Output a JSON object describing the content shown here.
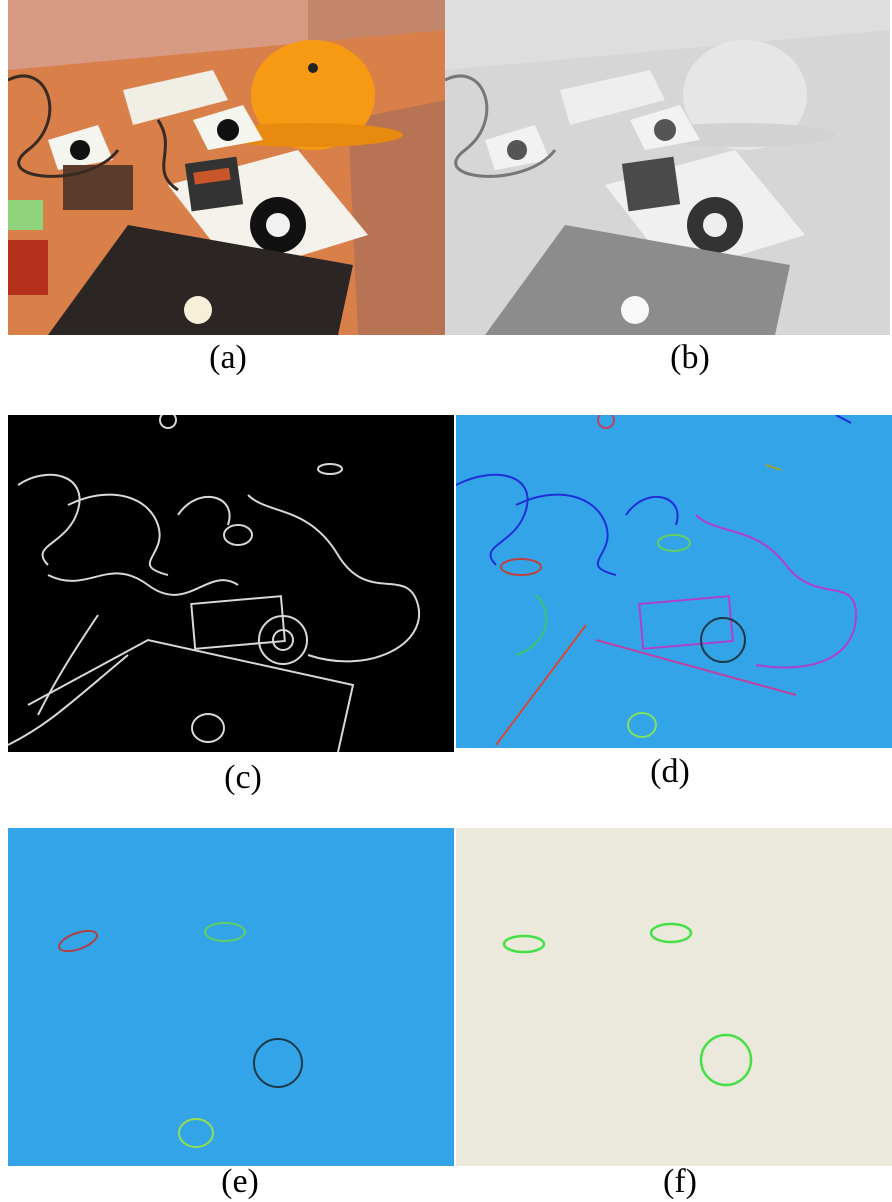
{
  "figure": {
    "panels": [
      {
        "id": "a",
        "caption": "(a)",
        "content": "original color photo of cluttered desk with yellow hard hat, fiducial markers, electronic device, laptop"
      },
      {
        "id": "b",
        "caption": "(b)",
        "content": "grayscale version of photo"
      },
      {
        "id": "c",
        "caption": "(c)",
        "content": "edge map, white edges on black"
      },
      {
        "id": "d",
        "caption": "(d)",
        "content": "colored edge segments on blue background"
      },
      {
        "id": "e",
        "caption": "(e)",
        "content": "detected ellipses on blue background"
      },
      {
        "id": "f",
        "caption": "(f)",
        "content": "final green ellipses on beige background"
      }
    ]
  },
  "colors": {
    "blue_bg": "#34a4e8",
    "beige_bg": "#ebe8dc",
    "helmet": "#f59a12",
    "desk": "#d9804a",
    "edge_white": "#d8d8d8",
    "ellipse_green": "#44e044"
  }
}
